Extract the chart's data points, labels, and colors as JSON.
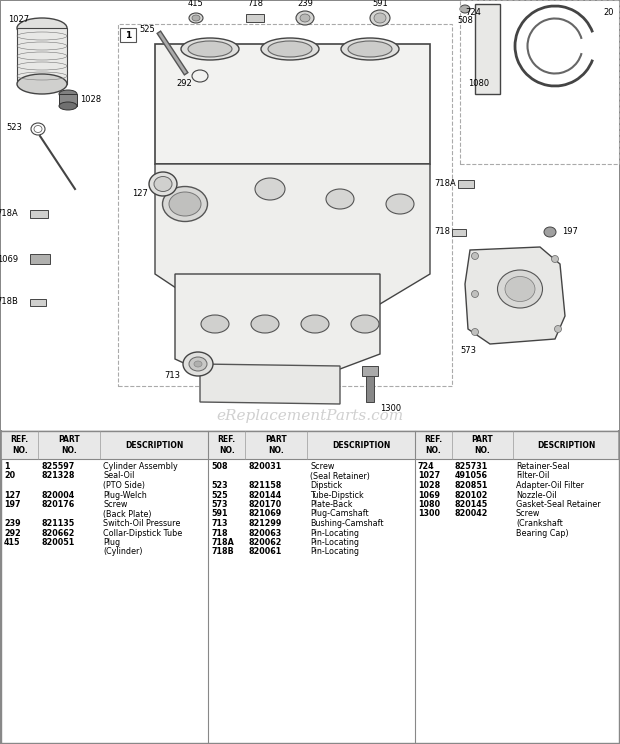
{
  "bg_color": "#ffffff",
  "diagram_bg": "#ffffff",
  "watermark": "eReplacementParts.com",
  "watermark_color": "#c8c8c8",
  "parts_col1": [
    [
      "1",
      "825597",
      "Cylinder Assembly",
      false
    ],
    [
      "20",
      "821328",
      "Seal-Oil",
      true
    ],
    [
      "",
      "",
      "(PTO Side)",
      false
    ],
    [
      "127",
      "820004",
      "Plug-Welch",
      false
    ],
    [
      "197",
      "820176",
      "Screw",
      false
    ],
    [
      "",
      "",
      "(Back Plate)",
      false
    ],
    [
      "239",
      "821135",
      "Switch-Oil Pressure",
      false
    ],
    [
      "292",
      "820662",
      "Collar-Dipstick Tube",
      false
    ],
    [
      "415",
      "820051",
      "Plug",
      false
    ],
    [
      "",
      "",
      "(Cylinder)",
      false
    ]
  ],
  "parts_col2": [
    [
      "508",
      "820031",
      "Screw",
      false
    ],
    [
      "",
      "",
      "(Seal Retainer)",
      false
    ],
    [
      "523",
      "821158",
      "Dipstick",
      false
    ],
    [
      "525",
      "820144",
      "Tube-Dipstick",
      false
    ],
    [
      "573",
      "820170",
      "Plate-Back",
      false
    ],
    [
      "591",
      "821069",
      "Plug-Camshaft",
      false
    ],
    [
      "713",
      "821299",
      "Bushing-Camshaft",
      false
    ],
    [
      "718",
      "820063",
      "Pin-Locating",
      false
    ],
    [
      "718A",
      "820062",
      "Pin-Locating",
      false
    ],
    [
      "718B",
      "820061",
      "Pin-Locating",
      false
    ]
  ],
  "parts_col3": [
    [
      "724",
      "825731",
      "Retainer-Seal",
      false
    ],
    [
      "1027",
      "491056",
      "Filter-Oil",
      false
    ],
    [
      "1028",
      "820851",
      "Adapter-Oil Filter",
      false
    ],
    [
      "1069",
      "820102",
      "Nozzle-Oil",
      false
    ],
    [
      "1080",
      "820145",
      "Gasket-Seal Retainer",
      false
    ],
    [
      "1300",
      "820042",
      "Screw",
      false
    ],
    [
      "",
      "",
      "(Crankshaft",
      false
    ],
    [
      "",
      "",
      "Bearing Cap)",
      false
    ]
  ]
}
